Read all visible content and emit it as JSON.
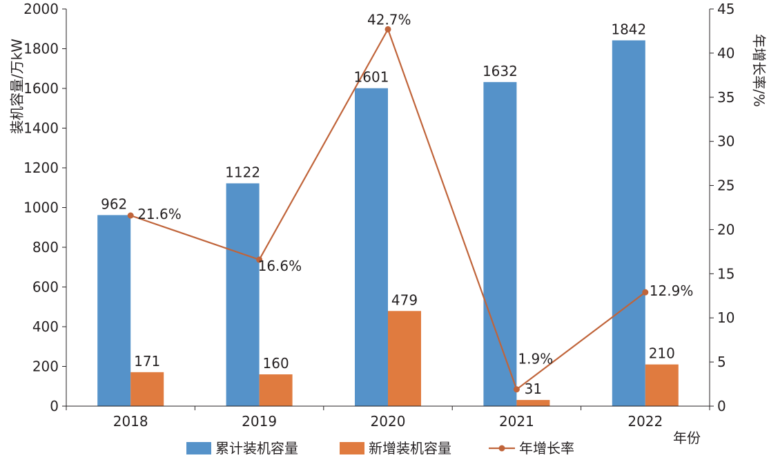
{
  "chart_data": {
    "type": "bar",
    "categories": [
      "2018",
      "2019",
      "2020",
      "2021",
      "2022"
    ],
    "series": [
      {
        "name": "累计装机容量",
        "kind": "bar",
        "axis": "left",
        "color": "#5592c9",
        "values": [
          962,
          1122,
          1601,
          1632,
          1842
        ]
      },
      {
        "name": "新增装机容量",
        "kind": "bar",
        "axis": "left",
        "color": "#e07b3f",
        "values": [
          171,
          160,
          479,
          31,
          210
        ]
      },
      {
        "name": "年增长率",
        "kind": "line",
        "axis": "right",
        "color": "#c0643a",
        "values": [
          21.6,
          16.6,
          42.7,
          1.9,
          12.9
        ],
        "labels": [
          "21.6%",
          "16.6%",
          "42.7%",
          "1.9%",
          "12.9%"
        ]
      }
    ],
    "xlabel": "年份",
    "ylabel": "装机容量/万kW",
    "y2label": "年增长率/%",
    "ylim": [
      0,
      2000
    ],
    "y2lim": [
      0,
      45
    ],
    "yticks": [
      "0",
      "200",
      "400",
      "600",
      "800",
      "1000",
      "1200",
      "1400",
      "1600",
      "1800",
      "2000"
    ],
    "y2ticks": [
      "0",
      "5",
      "10",
      "15",
      "20",
      "25",
      "30",
      "35",
      "40",
      "45"
    ],
    "grid": false,
    "legend_position": "bottom"
  }
}
